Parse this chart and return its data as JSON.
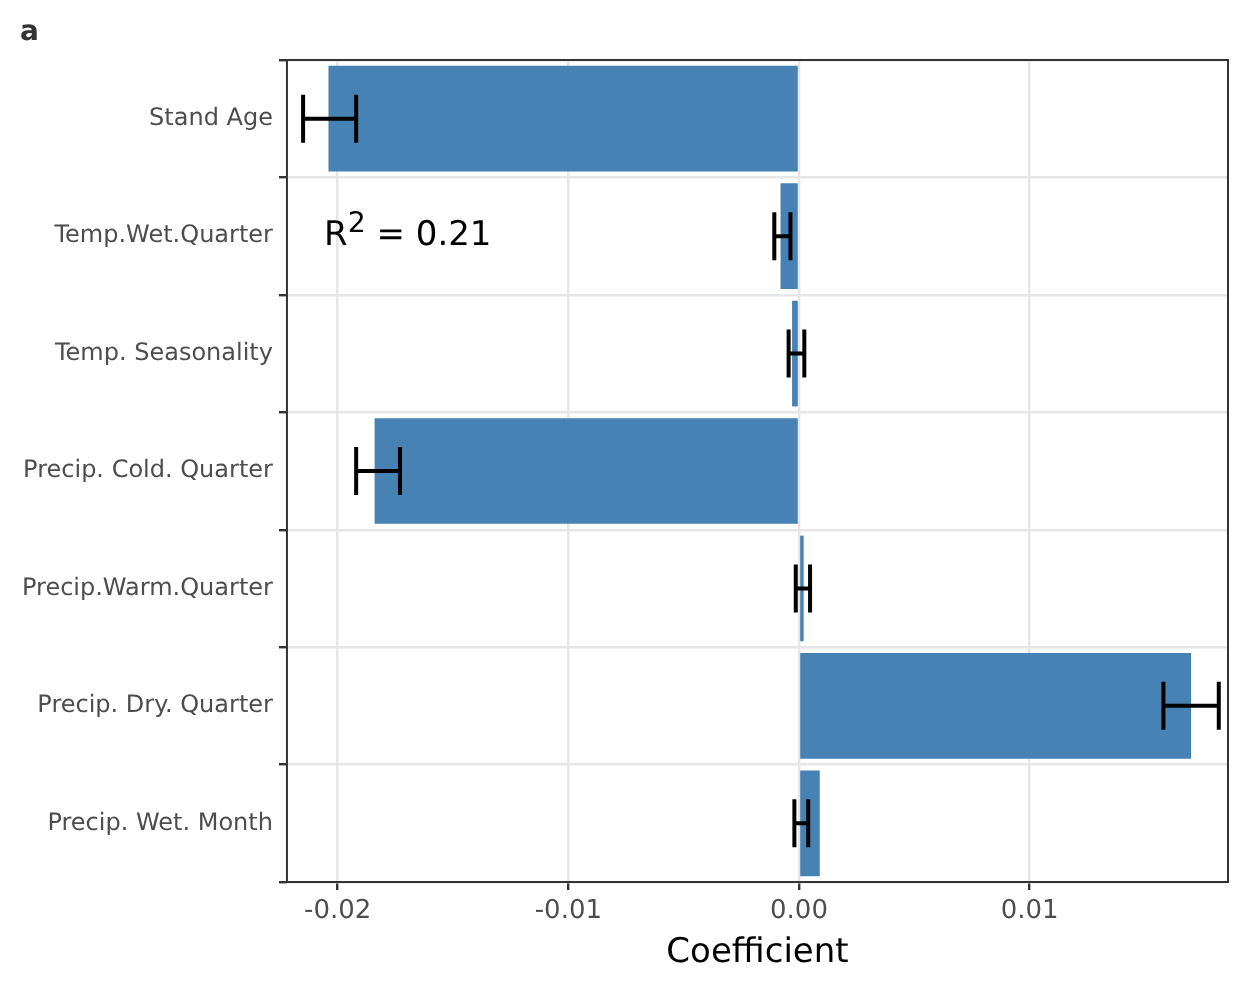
{
  "chart_data": {
    "type": "bar",
    "orientation": "horizontal",
    "xlabel": "Coefficient",
    "categories": [
      "Stand Age",
      "Temp.Wet.Quarter",
      "Temp. Seasonality",
      "Precip. Cold. Quarter",
      "Precip.Warm.Quarter",
      "Precip. Dry. Quarter",
      "Precip. Wet. Month"
    ],
    "values": [
      -0.0204,
      -0.0008,
      -0.0003,
      -0.0184,
      0.0002,
      0.017,
      0.0009
    ],
    "errors": [
      [
        -0.0215,
        -0.0192
      ],
      [
        -0.00107,
        -0.00037
      ],
      [
        -0.00045,
        0.00023
      ],
      [
        -0.0192,
        -0.0173
      ],
      [
        -0.00014,
        0.00048
      ],
      [
        0.0158,
        0.0182
      ],
      [
        -0.0002,
        0.0004
      ]
    ],
    "color": "#4682b4",
    "xlim": [
      -0.0222,
      0.0186
    ],
    "xticks": [
      {
        "value": -0.02,
        "label": "-0.02"
      },
      {
        "value": -0.01,
        "label": "-0.01"
      },
      {
        "value": 0,
        "label": "0.00"
      },
      {
        "value": 0.01,
        "label": "0.01"
      }
    ],
    "grid": true,
    "annotations": [
      "a",
      "R$^{2}$ = 0.21"
    ]
  }
}
